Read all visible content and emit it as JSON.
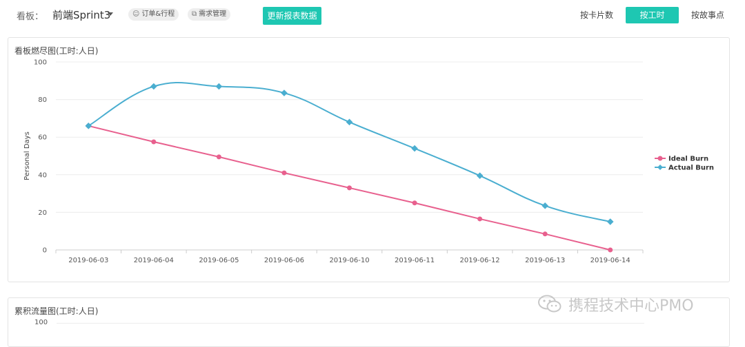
{
  "header": {
    "board_label": "看板：",
    "board_name": "前端Sprint3",
    "chips": [
      {
        "icon": "group-icon",
        "label": "订单&行程"
      },
      {
        "icon": "copy-icon",
        "label": "需求管理"
      }
    ],
    "refresh_label": "更新报表数据",
    "view_modes": [
      {
        "label": "按卡片数",
        "active": false
      },
      {
        "label": "按工时",
        "active": true
      },
      {
        "label": "按故事点",
        "active": false
      }
    ]
  },
  "colors": {
    "accent": "#1ec7b2",
    "ideal": "#e8608e",
    "actual": "#4aaed0"
  },
  "panels": {
    "burndown_title": "看板燃尽图(工时:人日)",
    "cumulative_title": "累积流量图(工时:人日)",
    "cumulative_top_tick": "100"
  },
  "chart_data": {
    "type": "line",
    "title": "看板燃尽图(工时:人日)",
    "xlabel": "",
    "ylabel": "Personal Days",
    "ylim": [
      0,
      100
    ],
    "yticks": [
      0,
      20,
      40,
      60,
      80,
      100
    ],
    "categories": [
      "2019-06-03",
      "2019-06-04",
      "2019-06-05",
      "2019-06-06",
      "2019-06-10",
      "2019-06-11",
      "2019-06-12",
      "2019-06-13",
      "2019-06-14"
    ],
    "legend_position": "right",
    "grid": true,
    "series": [
      {
        "name": "Ideal Burn",
        "marker": "circle",
        "values": [
          66,
          57.5,
          49.5,
          41,
          33,
          25,
          16.5,
          8.5,
          0
        ]
      },
      {
        "name": "Actual Burn",
        "marker": "diamond",
        "smooth": true,
        "values": [
          66,
          87,
          87,
          83.5,
          68,
          54,
          39.5,
          23.5,
          15
        ]
      }
    ]
  },
  "watermark": {
    "text": "携程技术中心PMO"
  }
}
